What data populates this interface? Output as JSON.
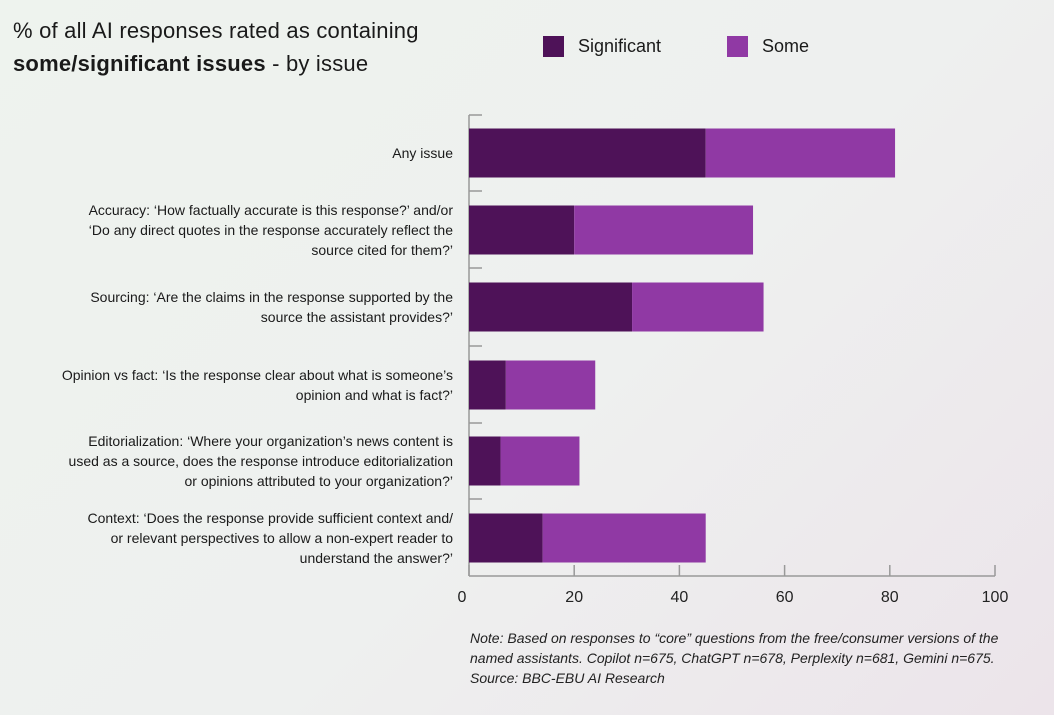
{
  "title": {
    "line1": "% of all AI responses rated as containing",
    "line2_bold": "some/significant issues",
    "line2_rest": " - by issue"
  },
  "legend": {
    "significant": "Significant",
    "some": "Some"
  },
  "colors": {
    "significant": "#4e1258",
    "some": "#9039a4",
    "axis": "#999999"
  },
  "note": "Note: Based on responses to “core” questions from the free/consumer versions of the named assistants. Copilot n=675, ChatGPT n=678, Perplexity n=681, Gemini n=675. Source: BBC-EBU AI Research",
  "chart_data": {
    "type": "bar",
    "orientation": "horizontal",
    "stacked": true,
    "title": "% of all AI responses rated as containing some/significant issues - by issue",
    "categories": [
      "Any issue",
      "Accuracy: ‘How factually accurate is this response?’ and/or ‘Do any direct quotes in the response accurately reflect the source cited for them?’",
      "Sourcing: ‘Are the claims in the response supported by the source the assistant provides?’",
      "Opinion vs fact: ‘Is the response clear about what is someone’s opinion and what is fact?’",
      "Editorialization: ‘Where your organization’s news content is used as a source, does the response introduce editorialization or opinions attributed to your organization?’",
      "Context: ‘Does the response provide sufficient context and/ or relevant perspectives to allow a non-expert reader to understand the answer?’"
    ],
    "category_lines": [
      [
        "Any issue"
      ],
      [
        "Accuracy: ‘How factually accurate is this response?’ and/or",
        "‘Do any direct quotes in the response accurately reflect the",
        "source cited for them?’"
      ],
      [
        "Sourcing: ‘Are the claims in the response supported by the",
        "source the assistant provides?’"
      ],
      [
        "Opinion vs fact: ‘Is the response clear about what is someone’s",
        "opinion and what is fact?’"
      ],
      [
        "Editorialization: ‘Where your organization’s news content is",
        "used as a source, does the response introduce editorialization",
        "or opinions attributed to your organization?’"
      ],
      [
        "Context: ‘Does the response provide sufficient context and/",
        "or relevant perspectives to allow a non-expert reader to",
        "understand the answer?’"
      ]
    ],
    "series": [
      {
        "name": "Significant",
        "values": [
          45,
          20,
          31,
          7,
          6,
          14
        ]
      },
      {
        "name": "Some",
        "values": [
          36,
          34,
          25,
          17,
          15,
          31
        ]
      }
    ],
    "xlim": [
      0,
      100
    ],
    "xticks": [
      0,
      20,
      40,
      60,
      80,
      100
    ],
    "xlabel": "",
    "ylabel": "",
    "grid": false,
    "legend_position": "top"
  }
}
